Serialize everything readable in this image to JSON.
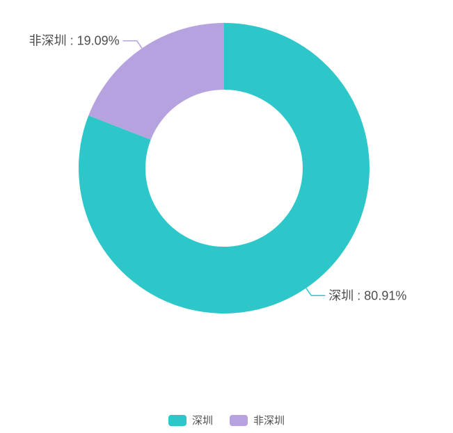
{
  "chart_data": {
    "type": "pie",
    "subtype": "donut",
    "slices": [
      {
        "name": "深圳",
        "value": 80.91,
        "display_label": "深圳 : 80.91%",
        "color": "#2EC7C9"
      },
      {
        "name": "非深圳",
        "value": 19.09,
        "display_label": "非深圳 : 19.09%",
        "color": "#B6A2DE"
      }
    ],
    "legend": {
      "position": "bottom-center",
      "items": [
        "深圳",
        "非深圳"
      ]
    },
    "label_text_color": "#4D4D4D",
    "background_color": "#FFFFFF"
  }
}
